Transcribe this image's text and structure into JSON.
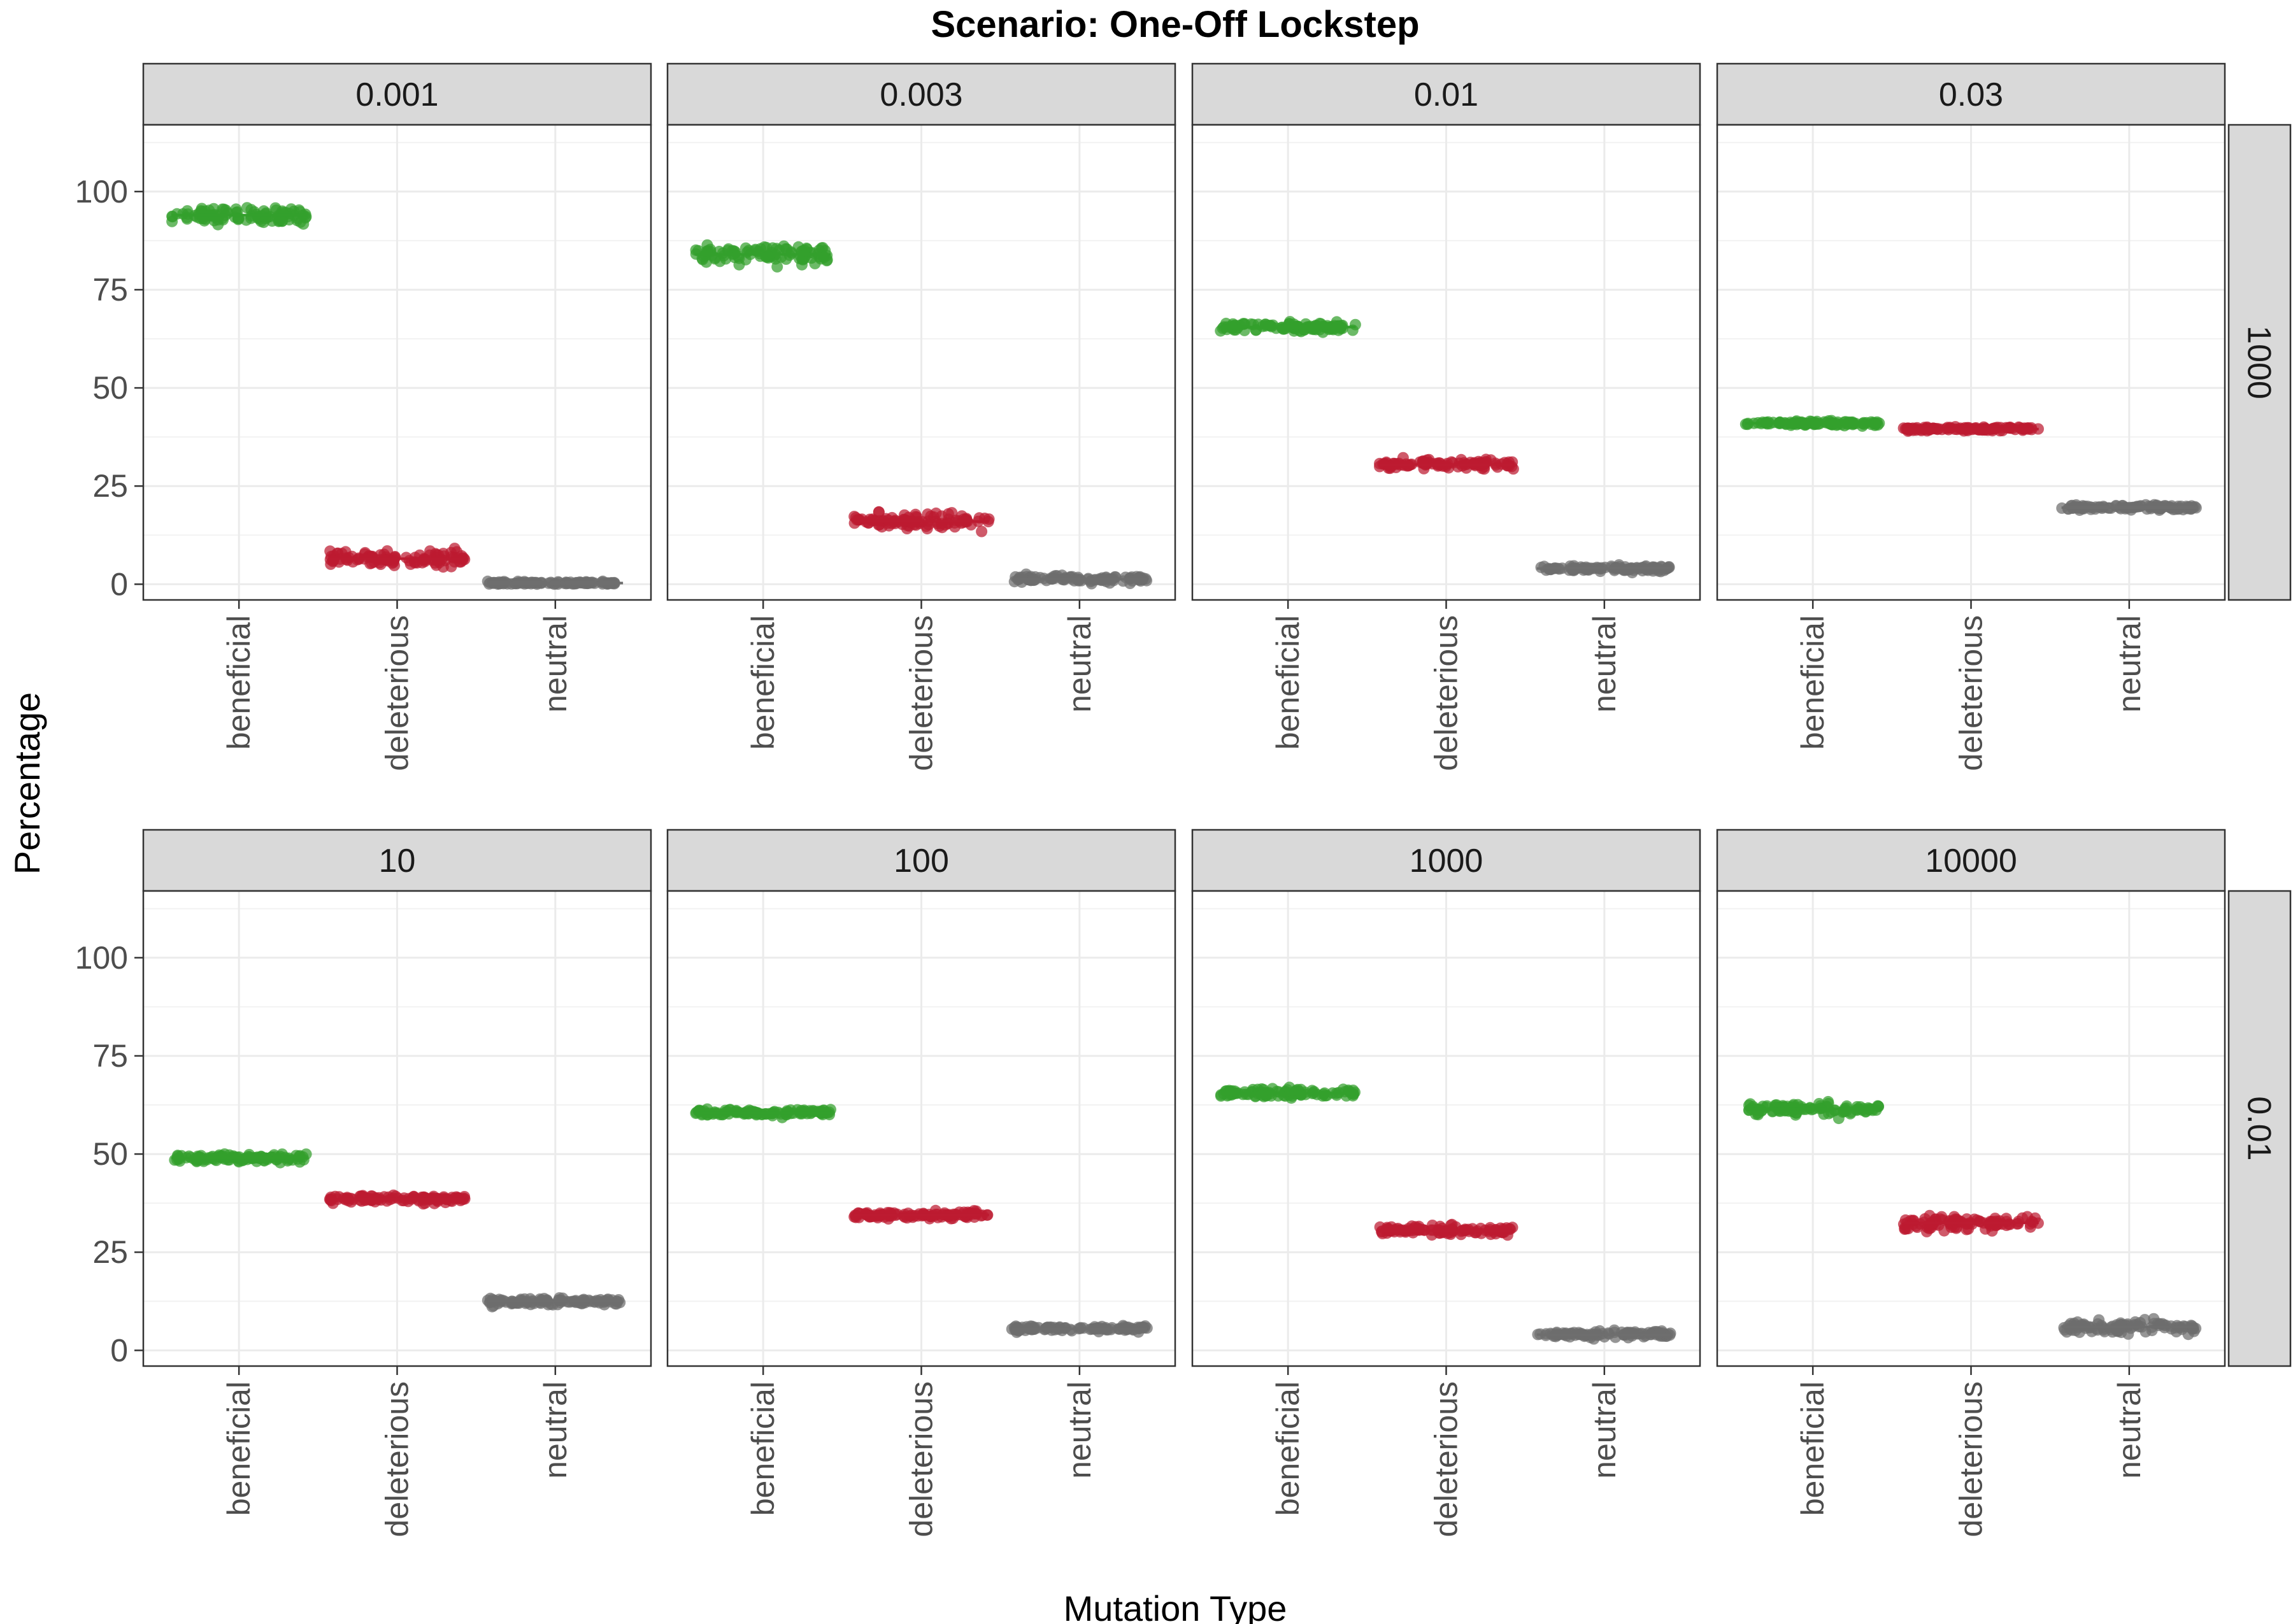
{
  "chart_data": {
    "type": "scatter",
    "title": "Scenario: One-Off Lockstep",
    "xlabel": "Mutation Type",
    "ylabel": "Percentage",
    "ylim": [
      -4,
      117
    ],
    "yticks": [
      0,
      25,
      50,
      75,
      100
    ],
    "categories": [
      "beneficial",
      "deleterious",
      "neutral"
    ],
    "category_colors": {
      "beneficial": "#33a02c",
      "deleterious": "#bd1b31",
      "neutral": "#6e6e6e"
    },
    "grid": true,
    "legend": "none",
    "rows": [
      {
        "strip_label": "1000"
      },
      {
        "strip_label": "0.01"
      }
    ],
    "panels": [
      {
        "row": 0,
        "col": 0,
        "strip_label": "0.001",
        "values": {
          "beneficial": 94,
          "deleterious": 6.5,
          "neutral": 0.3
        },
        "spread": {
          "beneficial": 2.2,
          "deleterious": 2.0,
          "neutral": 0.35
        }
      },
      {
        "row": 0,
        "col": 1,
        "strip_label": "0.003",
        "values": {
          "beneficial": 84,
          "deleterious": 16,
          "neutral": 1.3
        },
        "spread": {
          "beneficial": 2.4,
          "deleterious": 2.2,
          "neutral": 0.9
        }
      },
      {
        "row": 0,
        "col": 2,
        "strip_label": "0.01",
        "values": {
          "beneficial": 65.5,
          "deleterious": 30.5,
          "neutral": 4
        },
        "spread": {
          "beneficial": 1.2,
          "deleterious": 1.2,
          "neutral": 0.8
        }
      },
      {
        "row": 0,
        "col": 3,
        "strip_label": "0.03",
        "values": {
          "beneficial": 41,
          "deleterious": 39.5,
          "neutral": 19.5
        },
        "spread": {
          "beneficial": 0.6,
          "deleterious": 0.6,
          "neutral": 0.7
        }
      },
      {
        "row": 1,
        "col": 0,
        "strip_label": "10",
        "values": {
          "beneficial": 49,
          "deleterious": 38.5,
          "neutral": 12.5
        },
        "spread": {
          "beneficial": 1.0,
          "deleterious": 1.0,
          "neutral": 0.9
        }
      },
      {
        "row": 1,
        "col": 1,
        "strip_label": "100",
        "values": {
          "beneficial": 60.5,
          "deleterious": 34.5,
          "neutral": 5.5
        },
        "spread": {
          "beneficial": 0.9,
          "deleterious": 0.9,
          "neutral": 0.8
        }
      },
      {
        "row": 1,
        "col": 2,
        "strip_label": "1000",
        "values": {
          "beneficial": 65.5,
          "deleterious": 30.5,
          "neutral": 4
        },
        "spread": {
          "beneficial": 1.3,
          "deleterious": 1.4,
          "neutral": 0.8
        }
      },
      {
        "row": 1,
        "col": 3,
        "strip_label": "10000",
        "values": {
          "beneficial": 61.5,
          "deleterious": 32.5,
          "neutral": 6
        },
        "spread": {
          "beneficial": 1.6,
          "deleterious": 1.9,
          "neutral": 1.6
        }
      }
    ]
  }
}
